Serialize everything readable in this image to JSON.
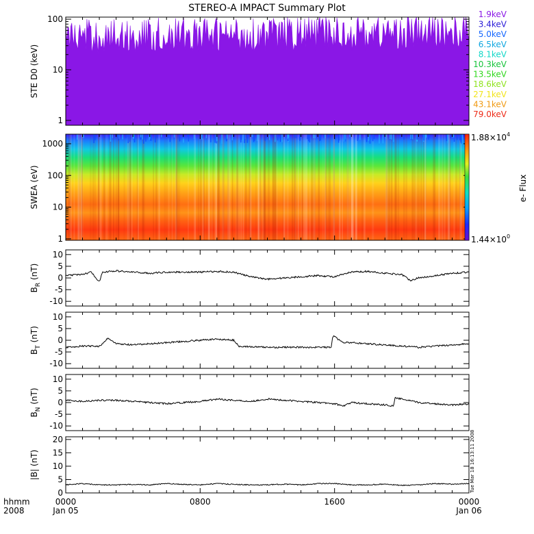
{
  "chart_data": {
    "type": "line",
    "title": "STEREO-A IMPACT Summary Plot",
    "time_axis": {
      "row1_label": "hhmm",
      "row2_label": "2008",
      "ticks": [
        {
          "hhmm": "0000",
          "date": "Jan 05",
          "hours": 0
        },
        {
          "hhmm": "0800",
          "date": "",
          "hours": 8
        },
        {
          "hhmm": "1600",
          "date": "",
          "hours": 16
        },
        {
          "hhmm": "0000",
          "date": "Jan 06",
          "hours": 24
        }
      ],
      "range_hours": [
        0,
        24
      ]
    },
    "timestamp": "Tue Mar 18 16:13:11 2008",
    "panels": [
      {
        "id": "ste",
        "type": "line",
        "ylabel": "STE D0 (keV)",
        "yscale": "log",
        "ylim": [
          0.8,
          110
        ],
        "ticks": [
          "1",
          "10",
          "100"
        ],
        "tick_values": [
          1,
          10,
          100
        ],
        "series": [
          {
            "name": "1.9keV",
            "color": "#8a17e6",
            "level": 45,
            "spread": 0.35
          },
          {
            "name": "3.4keV",
            "color": "#2a1bd8",
            "level": 7.5,
            "spread": 0.45
          },
          {
            "name": "5.0keV",
            "color": "#1466ff",
            "level": 5.2,
            "spread": 0.3
          },
          {
            "name": "6.5keV",
            "color": "#10a7e0",
            "level": 4.2,
            "spread": 0.18
          },
          {
            "name": "8.1keV",
            "color": "#12d8c8",
            "level": 3.5,
            "spread": 0.12
          },
          {
            "name": "10.3keV",
            "color": "#16c43a",
            "level": 2.95,
            "spread": 0.08
          },
          {
            "name": "13.5keV",
            "color": "#2fd81c",
            "level": 2.6,
            "spread": 0.06
          },
          {
            "name": "18.6keV",
            "color": "#8fe31e",
            "level": 2.3,
            "spread": 0.06
          },
          {
            "name": "27.1keV",
            "color": "#f2e41a",
            "level": 2.1,
            "spread": 0.06
          },
          {
            "name": "43.1keV",
            "color": "#f09a12",
            "level": 1.9,
            "spread": 0.06
          },
          {
            "name": "79.0keV",
            "color": "#ee2a16",
            "level": 1.75,
            "spread": 0.06
          }
        ]
      },
      {
        "id": "swea",
        "type": "heatmap",
        "ylabel": "SWEA (eV)",
        "yscale": "log",
        "ylim": [
          0.9,
          2000
        ],
        "ticks": [
          "1",
          "10",
          "100",
          "1000"
        ],
        "tick_values": [
          1,
          10,
          100,
          1000
        ],
        "colorbar": {
          "label": "e- Flux",
          "max_label": "1.88×10",
          "max_exp": "4",
          "min_label": "1.44×10",
          "min_exp": "0"
        }
      },
      {
        "id": "br",
        "type": "line",
        "ylabel": "B",
        "ylabel_sub": "R",
        "ylabel_unit": " (nT)",
        "ylim": [
          -12,
          12
        ],
        "ticks": [
          "10",
          "5",
          "0",
          "-5",
          "-10"
        ],
        "tick_values": [
          10,
          5,
          0,
          -5,
          -10
        ],
        "points": [
          [
            0,
            1
          ],
          [
            1,
            1.5
          ],
          [
            1.5,
            2.5
          ],
          [
            2,
            -1.5
          ],
          [
            2.2,
            2.5
          ],
          [
            3,
            3
          ],
          [
            4,
            2.5
          ],
          [
            5,
            2
          ],
          [
            6,
            2.5
          ],
          [
            7,
            2.5
          ],
          [
            8,
            2.5
          ],
          [
            9,
            2.8
          ],
          [
            10,
            2.5
          ],
          [
            11,
            0.5
          ],
          [
            12,
            -0.5
          ],
          [
            13,
            0
          ],
          [
            14,
            0.5
          ],
          [
            15,
            1
          ],
          [
            16,
            0.5
          ],
          [
            17,
            2.5
          ],
          [
            18,
            2.8
          ],
          [
            19,
            2
          ],
          [
            20,
            1.5
          ],
          [
            20.5,
            -1
          ],
          [
            21,
            0
          ],
          [
            22,
            1
          ],
          [
            23,
            2
          ],
          [
            24,
            2.5
          ]
        ]
      },
      {
        "id": "bt",
        "type": "line",
        "ylabel": "B",
        "ylabel_sub": "T",
        "ylabel_unit": " (nT)",
        "ylim": [
          -12,
          12
        ],
        "ticks": [
          "10",
          "5",
          "0",
          "-5",
          "-10"
        ],
        "tick_values": [
          10,
          5,
          0,
          -5,
          -10
        ],
        "points": [
          [
            0,
            -3
          ],
          [
            1,
            -2.5
          ],
          [
            2,
            -2.5
          ],
          [
            2.3,
            -1
          ],
          [
            2.5,
            1
          ],
          [
            3,
            -1.5
          ],
          [
            4,
            -2
          ],
          [
            5,
            -1.5
          ],
          [
            6,
            -1
          ],
          [
            7,
            -0.5
          ],
          [
            8,
            0
          ],
          [
            9,
            0.5
          ],
          [
            10,
            0
          ],
          [
            10.3,
            -2.5
          ],
          [
            11,
            -2.8
          ],
          [
            12,
            -3
          ],
          [
            13,
            -3
          ],
          [
            14,
            -3
          ],
          [
            15,
            -3
          ],
          [
            15.8,
            -3
          ],
          [
            15.9,
            2
          ],
          [
            16.5,
            -1
          ],
          [
            17,
            -1
          ],
          [
            18,
            -1.5
          ],
          [
            19,
            -2
          ],
          [
            20,
            -2.5
          ],
          [
            21,
            -3
          ],
          [
            22,
            -2.5
          ],
          [
            23,
            -2
          ],
          [
            24,
            -1.5
          ]
        ]
      },
      {
        "id": "bn",
        "type": "line",
        "ylabel": "B",
        "ylabel_sub": "N",
        "ylabel_unit": " (nT)",
        "ylim": [
          -12,
          12
        ],
        "ticks": [
          "10",
          "5",
          "0",
          "-5",
          "-10"
        ],
        "tick_values": [
          10,
          5,
          0,
          -5,
          -10
        ],
        "points": [
          [
            0,
            1
          ],
          [
            1,
            0.5
          ],
          [
            2,
            1
          ],
          [
            3,
            1
          ],
          [
            4,
            0.5
          ],
          [
            5,
            0
          ],
          [
            6,
            -0.5
          ],
          [
            7,
            0
          ],
          [
            8,
            0.5
          ],
          [
            9,
            1.5
          ],
          [
            10,
            1
          ],
          [
            11,
            0.5
          ],
          [
            12,
            1.5
          ],
          [
            13,
            1
          ],
          [
            14,
            0.5
          ],
          [
            15,
            0
          ],
          [
            16,
            -0.5
          ],
          [
            16.5,
            -1.5
          ],
          [
            17,
            0
          ],
          [
            18,
            -0.5
          ],
          [
            19,
            -1
          ],
          [
            19.5,
            -1.5
          ],
          [
            19.6,
            2
          ],
          [
            20,
            1.5
          ],
          [
            21,
            0
          ],
          [
            22,
            -0.5
          ],
          [
            23,
            -1
          ],
          [
            24,
            -0.5
          ]
        ]
      },
      {
        "id": "bmag",
        "type": "line",
        "ylabel": "|B| (nT)",
        "ylim": [
          0,
          21
        ],
        "ticks": [
          "20",
          "15",
          "10",
          "5",
          "0"
        ],
        "tick_values": [
          20,
          15,
          10,
          5,
          0
        ],
        "points": [
          [
            0,
            3
          ],
          [
            1,
            3.5
          ],
          [
            2,
            3
          ],
          [
            3,
            3
          ],
          [
            4,
            3.2
          ],
          [
            5,
            3
          ],
          [
            6,
            3.5
          ],
          [
            7,
            3.2
          ],
          [
            8,
            3
          ],
          [
            9,
            3.5
          ],
          [
            10,
            3.2
          ],
          [
            11,
            3
          ],
          [
            12,
            3
          ],
          [
            13,
            3.3
          ],
          [
            14,
            3
          ],
          [
            15,
            3.5
          ],
          [
            16,
            3.5
          ],
          [
            17,
            3
          ],
          [
            18,
            3
          ],
          [
            19,
            3.3
          ],
          [
            20,
            2.8
          ],
          [
            21,
            3
          ],
          [
            22,
            3.5
          ],
          [
            23,
            3.3
          ],
          [
            24,
            3.5
          ]
        ]
      }
    ]
  }
}
